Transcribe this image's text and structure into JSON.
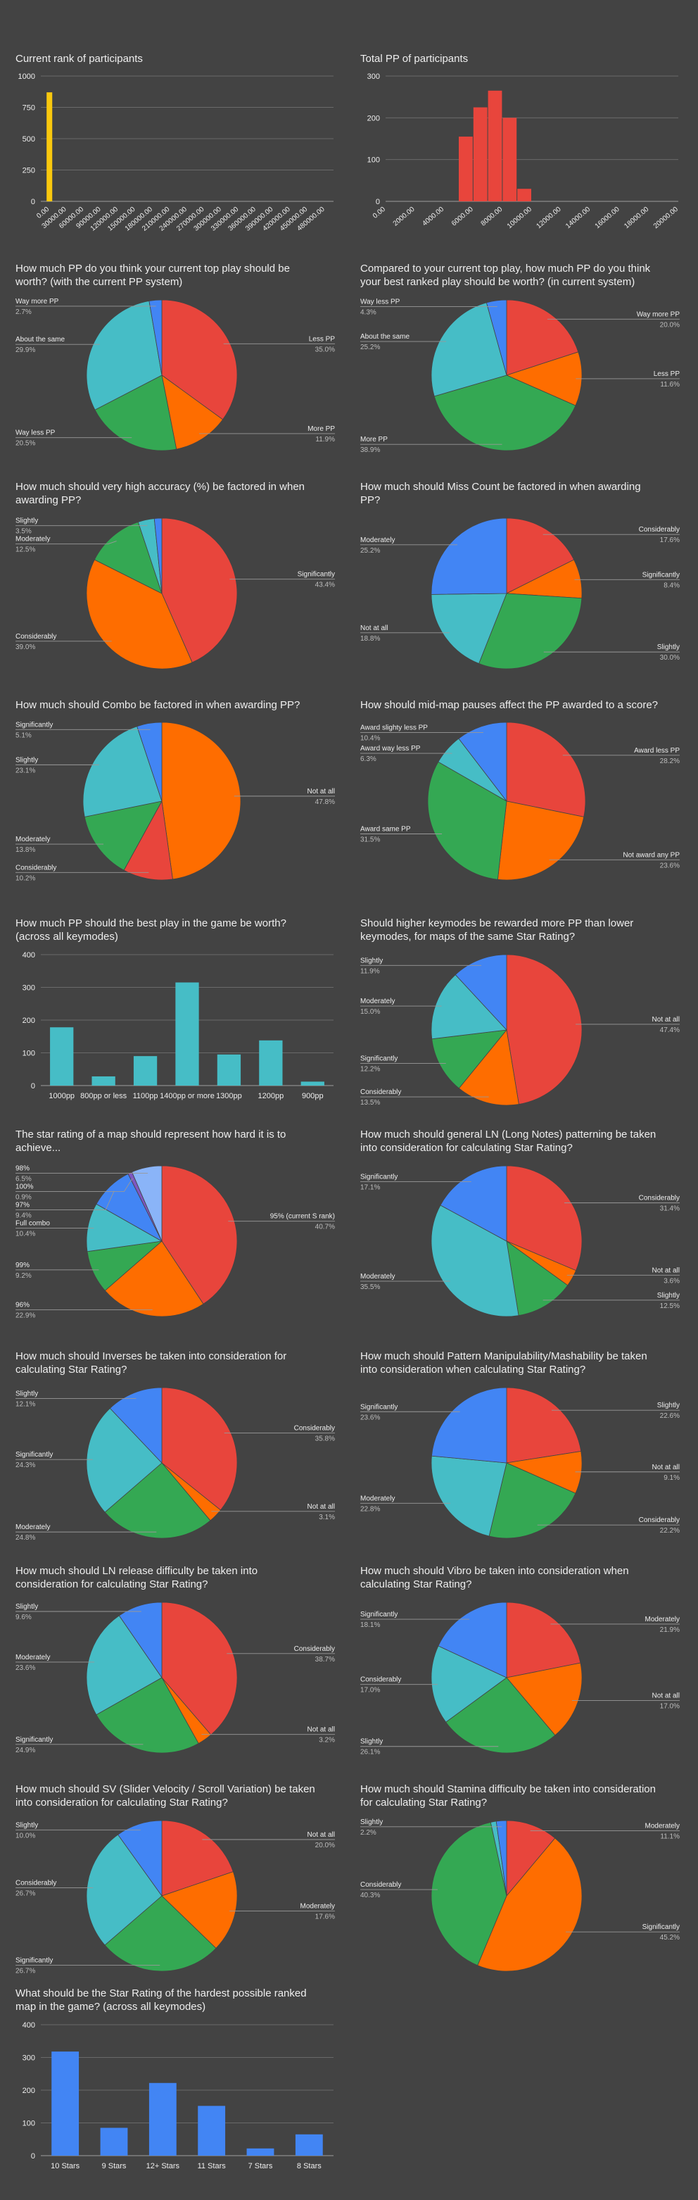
{
  "colors": {
    "background": "#434343",
    "text": "#eeeeee",
    "subtext": "#bdbdbd",
    "grid": "#6a6a6a",
    "leader": "#999999",
    "red": "#e8453c",
    "orange": "#fe6d00",
    "green": "#34a853",
    "teal": "#46bdc6",
    "blue": "#4285f4",
    "lightblue": "#8ab4f8",
    "yellow": "#f9c80e"
  },
  "chart_data": [
    {
      "type": "bar",
      "title": "Current rank of participants",
      "color": "yellow",
      "categories": [
        "0.00",
        "30000.00",
        "60000.00",
        "90000.00",
        "120000.00",
        "150000.00",
        "180000.00",
        "210000.00",
        "240000.00",
        "270000.00",
        "300000.00",
        "330000.00",
        "360000.00",
        "390000.00",
        "420000.00",
        "450000.00",
        "480000.00"
      ],
      "values": [
        870,
        0,
        0,
        0,
        0,
        0,
        0,
        0,
        0,
        0,
        0,
        0,
        0,
        0,
        0,
        0,
        0
      ],
      "yticks": [
        "0",
        "250",
        "500",
        "750",
        "1000"
      ],
      "ylim": [
        0,
        1000
      ],
      "grid": true
    },
    {
      "type": "bar",
      "title": "Total PP of participants",
      "color": "red",
      "categories": [
        "0.00",
        "2000.00",
        "4000.00",
        "6000.00",
        "8000.00",
        "10000.00",
        "12000.00",
        "14000.00",
        "16000.00",
        "18000.00",
        "20000.00"
      ],
      "histogram": true,
      "bins": [
        {
          "from": 5000,
          "to": 6000,
          "value": 155
        },
        {
          "from": 6000,
          "to": 7000,
          "value": 225
        },
        {
          "from": 7000,
          "to": 8000,
          "value": 265
        },
        {
          "from": 8000,
          "to": 9000,
          "value": 200
        },
        {
          "from": 9000,
          "to": 10000,
          "value": 30
        }
      ],
      "xlim": [
        0,
        20000
      ],
      "yticks": [
        "0",
        "100",
        "200",
        "300"
      ],
      "ylim": [
        0,
        300
      ],
      "grid": true
    },
    {
      "type": "pie",
      "title": [
        "How much PP do you think your current top play should be",
        "worth? (with the current PP system)"
      ],
      "slices": [
        {
          "label": "Less PP",
          "value": 35.0,
          "pct": "35.0%",
          "color": "red"
        },
        {
          "label": "More PP",
          "value": 11.9,
          "pct": "11.9%",
          "color": "orange"
        },
        {
          "label": "Way less PP",
          "value": 20.5,
          "pct": "20.5%",
          "color": "green"
        },
        {
          "label": "About the same",
          "value": 29.9,
          "pct": "29.9%",
          "color": "teal"
        },
        {
          "label": "Way more PP",
          "value": 2.7,
          "pct": "2.7%",
          "color": "blue"
        }
      ]
    },
    {
      "type": "pie",
      "title": [
        "Compared to your current top play, how much PP do you think",
        "your best ranked play should be worth? (in current system)"
      ],
      "slices": [
        {
          "label": "Way more PP",
          "value": 20.0,
          "pct": "20.0%",
          "color": "red"
        },
        {
          "label": "Less PP",
          "value": 11.6,
          "pct": "11.6%",
          "color": "orange"
        },
        {
          "label": "More PP",
          "value": 38.9,
          "pct": "38.9%",
          "color": "green"
        },
        {
          "label": "About the same",
          "value": 25.2,
          "pct": "25.2%",
          "color": "teal"
        },
        {
          "label": "Way less PP",
          "value": 4.3,
          "pct": "4.3%",
          "color": "blue"
        }
      ]
    },
    {
      "type": "pie",
      "title": [
        "How much should very high accuracy (%) be factored in when",
        "awarding PP?"
      ],
      "slices": [
        {
          "label": "Significantly",
          "value": 43.4,
          "pct": "43.4%",
          "color": "red"
        },
        {
          "label": "Considerably",
          "value": 39.0,
          "pct": "39.0%",
          "color": "orange"
        },
        {
          "label": "Moderately",
          "value": 12.5,
          "pct": "12.5%",
          "color": "green"
        },
        {
          "label": "Slightly",
          "value": 3.5,
          "pct": "3.5%",
          "color": "teal"
        },
        {
          "label": "",
          "value": 1.6,
          "pct": "",
          "color": "blue"
        }
      ]
    },
    {
      "type": "pie",
      "title": [
        "How much should Miss Count be factored in when awarding",
        "PP?"
      ],
      "slices": [
        {
          "label": "Considerably",
          "value": 17.6,
          "pct": "17.6%",
          "color": "red"
        },
        {
          "label": "Significantly",
          "value": 8.4,
          "pct": "8.4%",
          "color": "orange"
        },
        {
          "label": "Slightly",
          "value": 30.0,
          "pct": "30.0%",
          "color": "green"
        },
        {
          "label": "Not at all",
          "value": 18.8,
          "pct": "18.8%",
          "color": "teal"
        },
        {
          "label": "Moderately",
          "value": 25.2,
          "pct": "25.2%",
          "color": "blue"
        }
      ]
    },
    {
      "type": "pie",
      "title": [
        "How much should Combo be factored in when awarding PP?"
      ],
      "slices": [
        {
          "label": "Not at all",
          "value": 47.8,
          "pct": "47.8%",
          "color": "orange"
        },
        {
          "label": "Considerably",
          "value": 10.2,
          "pct": "10.2%",
          "color": "red"
        },
        {
          "label": "Moderately",
          "value": 13.8,
          "pct": "13.8%",
          "color": "green"
        },
        {
          "label": "Slightly",
          "value": 23.1,
          "pct": "23.1%",
          "color": "teal"
        },
        {
          "label": "Significantly",
          "value": 5.1,
          "pct": "5.1%",
          "color": "blue"
        }
      ]
    },
    {
      "type": "pie",
      "title": [
        "How should mid-map pauses affect the PP awarded to a score?"
      ],
      "slices": [
        {
          "label": "Award less PP",
          "value": 28.2,
          "pct": "28.2%",
          "color": "red"
        },
        {
          "label": "Not award any PP",
          "value": 23.6,
          "pct": "23.6%",
          "color": "orange"
        },
        {
          "label": "Award same PP",
          "value": 31.5,
          "pct": "31.5%",
          "color": "green"
        },
        {
          "label": "Award way less PP",
          "value": 6.3,
          "pct": "6.3%",
          "color": "teal"
        },
        {
          "label": "Award slighty less PP",
          "value": 10.4,
          "pct": "10.4%",
          "color": "blue"
        }
      ]
    },
    {
      "type": "bar",
      "title": [
        "How much PP should the best play in the game be worth?",
        "(across all keymodes)"
      ],
      "color": "teal",
      "categories": [
        "1000pp",
        "800pp or less",
        "1100pp",
        "1400pp or more",
        "1300pp",
        "1200pp",
        "900pp"
      ],
      "values": [
        178,
        28,
        90,
        315,
        95,
        138,
        12
      ],
      "yticks": [
        "0",
        "100",
        "200",
        "300",
        "400"
      ],
      "ylim": [
        0,
        400
      ],
      "grid": true
    },
    {
      "type": "pie",
      "title": [
        "Should higher keymodes be rewarded more PP than lower",
        "keymodes, for maps of the same Star Rating?"
      ],
      "slices": [
        {
          "label": "Not at all",
          "value": 47.4,
          "pct": "47.4%",
          "color": "red"
        },
        {
          "label": "Considerably",
          "value": 13.5,
          "pct": "13.5%",
          "color": "orange"
        },
        {
          "label": "Significantly",
          "value": 12.2,
          "pct": "12.2%",
          "color": "green"
        },
        {
          "label": "Moderately",
          "value": 15.0,
          "pct": "15.0%",
          "color": "teal"
        },
        {
          "label": "Slightly",
          "value": 11.9,
          "pct": "11.9%",
          "color": "blue"
        }
      ]
    },
    {
      "type": "pie",
      "title": [
        "The star rating of a map should represent how hard it is to",
        "achieve..."
      ],
      "slices": [
        {
          "label": "95% (current S rank)",
          "value": 40.7,
          "pct": "40.7%",
          "color": "red"
        },
        {
          "label": "96%",
          "value": 22.9,
          "pct": "22.9%",
          "color": "orange"
        },
        {
          "label": "99%",
          "value": 9.2,
          "pct": "9.2%",
          "color": "green"
        },
        {
          "label": "Full combo",
          "value": 10.4,
          "pct": "10.4%",
          "color": "teal"
        },
        {
          "label": "97%",
          "value": 9.4,
          "pct": "9.4%",
          "color": "blue"
        },
        {
          "label": "100%",
          "value": 0.9,
          "pct": "0.9%",
          "color": "purple"
        },
        {
          "label": "98%",
          "value": 6.5,
          "pct": "6.5%",
          "color": "lightblue"
        }
      ]
    },
    {
      "type": "pie",
      "title": [
        "How much should general LN (Long Notes) patterning be taken",
        "into consideration for calculating Star Rating?"
      ],
      "slices": [
        {
          "label": "Considerably",
          "value": 31.4,
          "pct": "31.4%",
          "color": "red"
        },
        {
          "label": "Not at all",
          "value": 3.6,
          "pct": "3.6%",
          "color": "orange"
        },
        {
          "label": "Slightly",
          "value": 12.5,
          "pct": "12.5%",
          "color": "green"
        },
        {
          "label": "Moderately",
          "value": 35.5,
          "pct": "35.5%",
          "color": "teal"
        },
        {
          "label": "Significantly",
          "value": 17.1,
          "pct": "17.1%",
          "color": "blue"
        }
      ]
    },
    {
      "type": "pie",
      "title": [
        "How much should Inverses be taken into consideration for",
        "calculating Star Rating?"
      ],
      "slices": [
        {
          "label": "Considerably",
          "value": 35.8,
          "pct": "35.8%",
          "color": "red"
        },
        {
          "label": "Not at all",
          "value": 3.1,
          "pct": "3.1%",
          "color": "orange"
        },
        {
          "label": "Moderately",
          "value": 24.8,
          "pct": "24.8%",
          "color": "green"
        },
        {
          "label": "Significantly",
          "value": 24.3,
          "pct": "24.3%",
          "color": "teal"
        },
        {
          "label": "Slightly",
          "value": 12.1,
          "pct": "12.1%",
          "color": "blue"
        }
      ]
    },
    {
      "type": "pie",
      "title": [
        "How much should Pattern Manipulability/Mashability be taken",
        "into consideration when calculating Star Rating?"
      ],
      "slices": [
        {
          "label": "Slightly",
          "value": 22.6,
          "pct": "22.6%",
          "color": "red"
        },
        {
          "label": "Not at all",
          "value": 9.1,
          "pct": "9.1%",
          "color": "orange"
        },
        {
          "label": "Considerably",
          "value": 22.2,
          "pct": "22.2%",
          "color": "green"
        },
        {
          "label": "Moderately",
          "value": 22.8,
          "pct": "22.8%",
          "color": "teal"
        },
        {
          "label": "Significantly",
          "value": 23.6,
          "pct": "23.6%",
          "color": "blue"
        }
      ]
    },
    {
      "type": "pie",
      "title": [
        "How much should LN release difficulty be taken into",
        "consideration for calculating Star Rating?"
      ],
      "slices": [
        {
          "label": "Considerably",
          "value": 38.7,
          "pct": "38.7%",
          "color": "red"
        },
        {
          "label": "Not at all",
          "value": 3.2,
          "pct": "3.2%",
          "color": "orange"
        },
        {
          "label": "Significantly",
          "value": 24.9,
          "pct": "24.9%",
          "color": "green"
        },
        {
          "label": "Moderately",
          "value": 23.6,
          "pct": "23.6%",
          "color": "teal"
        },
        {
          "label": "Slightly",
          "value": 9.6,
          "pct": "9.6%",
          "color": "blue"
        }
      ]
    },
    {
      "type": "pie",
      "title": [
        "How much should Vibro be taken into consideration when",
        "calculating Star Rating?"
      ],
      "slices": [
        {
          "label": "Moderately",
          "value": 21.9,
          "pct": "21.9%",
          "color": "red"
        },
        {
          "label": "Not at all",
          "value": 17.0,
          "pct": "17.0%",
          "color": "orange"
        },
        {
          "label": "Slightly",
          "value": 26.1,
          "pct": "26.1%",
          "color": "green"
        },
        {
          "label": "Considerably",
          "value": 17.0,
          "pct": "17.0%",
          "color": "teal"
        },
        {
          "label": "Significantly",
          "value": 18.1,
          "pct": "18.1%",
          "color": "blue"
        }
      ]
    },
    {
      "type": "pie",
      "title": [
        "How much should SV (Slider Velocity / Scroll Variation) be taken",
        "into consideration for calculating Star Rating?"
      ],
      "slices": [
        {
          "label": "Not at all",
          "value": 20.0,
          "pct": "20.0%",
          "color": "red"
        },
        {
          "label": "Moderately",
          "value": 17.6,
          "pct": "17.6%",
          "color": "orange"
        },
        {
          "label": "Significantly",
          "value": 26.7,
          "pct": "26.7%",
          "color": "green"
        },
        {
          "label": "Considerably",
          "value": 26.7,
          "pct": "26.7%",
          "color": "teal"
        },
        {
          "label": "Slightly",
          "value": 10.0,
          "pct": "10.0%",
          "color": "blue"
        }
      ]
    },
    {
      "type": "pie",
      "title": [
        "How much should Stamina difficulty be taken into consideration",
        "for calculating Star Rating?"
      ],
      "slices": [
        {
          "label": "Moderately",
          "value": 11.1,
          "pct": "11.1%",
          "color": "red"
        },
        {
          "label": "Significantly",
          "value": 45.2,
          "pct": "45.2%",
          "color": "orange"
        },
        {
          "label": "Considerably",
          "value": 40.3,
          "pct": "40.3%",
          "color": "green"
        },
        {
          "label": "",
          "value": 1.2,
          "pct": "",
          "color": "teal"
        },
        {
          "label": "Slightly",
          "value": 2.2,
          "pct": "2.2%",
          "color": "blue"
        }
      ]
    },
    {
      "type": "bar",
      "title": [
        "What should be the Star Rating of the hardest possible ranked",
        "map in the game? (across all keymodes)"
      ],
      "color": "blue",
      "categories": [
        "10 Stars",
        "9 Stars",
        "12+ Stars",
        "11 Stars",
        "7 Stars",
        "8 Stars"
      ],
      "values": [
        318,
        85,
        222,
        152,
        22,
        65
      ],
      "yticks": [
        "0",
        "100",
        "200",
        "300",
        "400"
      ],
      "ylim": [
        0,
        400
      ],
      "grid": true
    }
  ]
}
